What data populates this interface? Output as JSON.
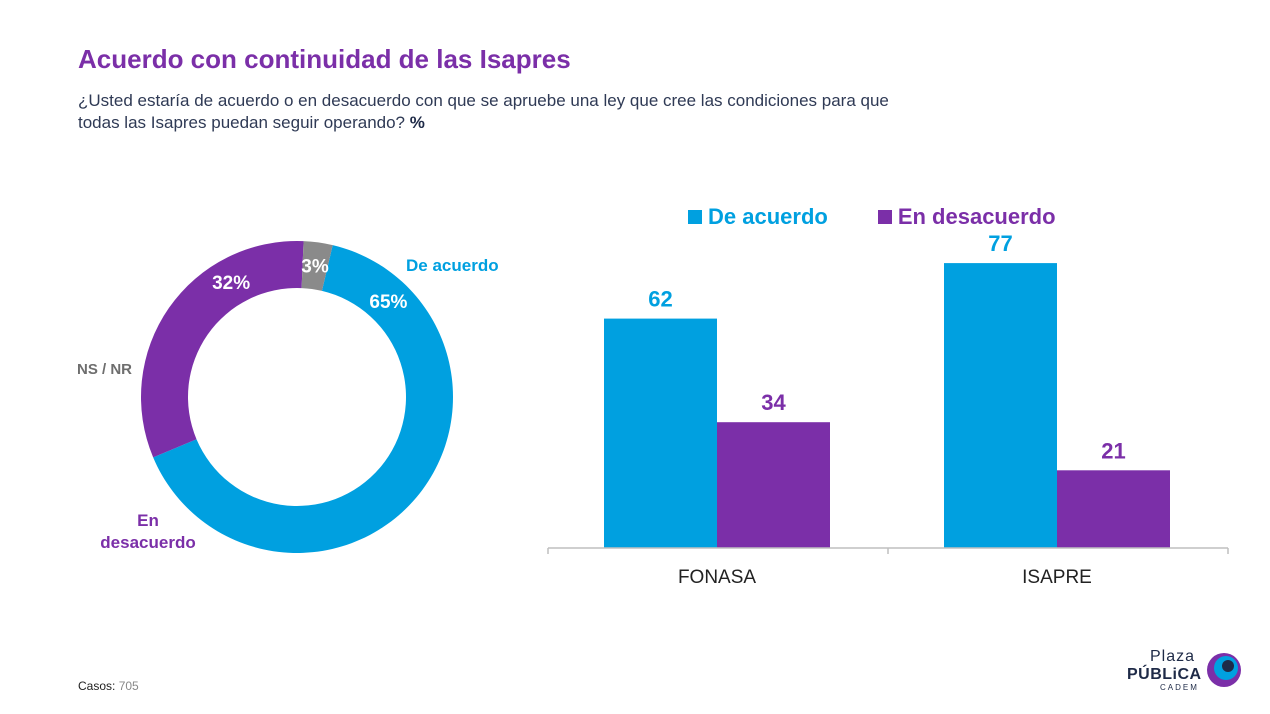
{
  "header": {
    "title": "Acuerdo con continuidad de las Isapres",
    "subtitle": "¿Usted estaría de acuerdo o en desacuerdo con que se apruebe una ley que cree las condiciones para que todas las Isapres puedan seguir operando?",
    "unit": "%"
  },
  "colors": {
    "acuerdo": "#00a0e0",
    "desacuerdo": "#7b2fa8",
    "nsnr": "#8a8a8a"
  },
  "chart_data": [
    {
      "type": "pie",
      "variant": "donut",
      "slices": [
        {
          "label": "De acuerdo",
          "value": 65,
          "value_label": "65%"
        },
        {
          "label": "En desacuerdo",
          "value": 32,
          "value_label": "32%"
        },
        {
          "label": "NS / NR",
          "value": 3,
          "value_label": "3%"
        }
      ]
    },
    {
      "type": "bar",
      "categories": [
        "FONASA",
        "ISAPRE"
      ],
      "series": [
        {
          "name": "De acuerdo",
          "values": [
            62,
            77
          ]
        },
        {
          "name": "En desacuerdo",
          "values": [
            34,
            21
          ]
        }
      ],
      "legend": "top",
      "ylim": [
        0,
        100
      ],
      "grid": false
    }
  ],
  "footer": {
    "casos_label": "Casos",
    "casos_value": "705"
  },
  "logo": {
    "line1": "Plaza",
    "line2": "PÚBLiCA",
    "line3": "CADEM"
  }
}
